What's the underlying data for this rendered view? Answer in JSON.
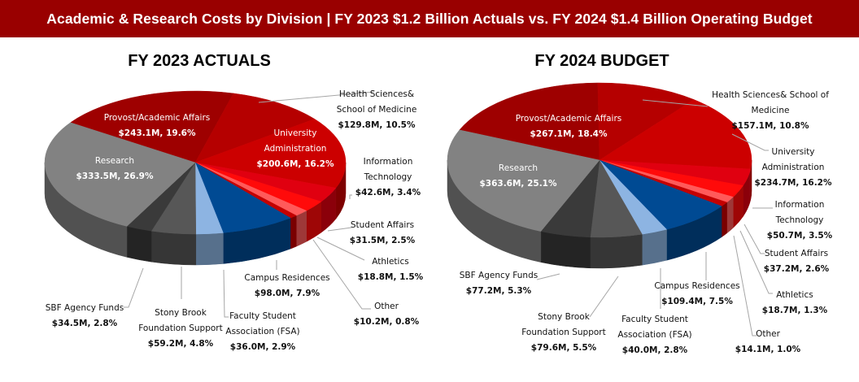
{
  "header": {
    "title": "Academic  & Research Costs by Division  | FY 2023 $1.2 Billion  Actuals  vs. FY 2024 $1.4 Billion  Operating Budget"
  },
  "colors": {
    "banner": "#990000",
    "Provost/Academic Affairs": "#9e0000",
    "Health Sciences& School of Medicine": "#b50000",
    "University Administration": "#cc0000",
    "Information Technology": "#e00010",
    "Student Affairs": "#ff0a0a",
    "Athletics": "#ff5a5a",
    "Other": "#c40000",
    "Campus Residences": "#004a93",
    "Faculty Student Association (FSA)": "#8db4e2",
    "Stony Brook Foundation Support": "#575757",
    "SBF Agency Funds": "#3a3a3a",
    "Research": "#828282"
  },
  "chart_data": [
    {
      "type": "pie",
      "title": "FY 2023 ACTUALS",
      "categories": [
        "Provost/Academic Affairs",
        "Health Sciences& School of Medicine",
        "University Administration",
        "Information Technology",
        "Student Affairs",
        "Athletics",
        "Other",
        "Campus Residences",
        "Faculty Student Association (FSA)",
        "Stony Brook Foundation Support",
        "SBF Agency Funds",
        "Research"
      ],
      "values_millions": [
        243.1,
        129.8,
        200.6,
        42.6,
        31.5,
        18.8,
        10.2,
        98.0,
        36.0,
        59.2,
        34.5,
        333.5
      ],
      "percents": [
        19.6,
        10.5,
        16.2,
        3.4,
        2.5,
        1.5,
        0.8,
        7.9,
        2.9,
        4.8,
        2.8,
        26.9
      ],
      "value_labels": [
        "$243.1M, 19.6%",
        "$129.8M, 10.5%",
        "$200.6M, 16.2%",
        "$42.6M, 3.4%",
        "$31.5M, 2.5%",
        "$18.8M, 1.5%",
        "$10.2M, 0.8%",
        "$98.0M, 7.9%",
        "$36.0M, 2.9%",
        "$59.2M, 4.8%",
        "$34.5M, 2.8%",
        "$333.5M, 26.9%"
      ],
      "total": "$1.2 Billion"
    },
    {
      "type": "pie",
      "title": "FY 2024 BUDGET",
      "categories": [
        "Provost/Academic Affairs",
        "Health Sciences& School of Medicine",
        "University Administration",
        "Information Technology",
        "Student Affairs",
        "Athletics",
        "Other",
        "Campus Residences",
        "Faculty Student Association (FSA)",
        "Stony Brook Foundation Support",
        "SBF Agency Funds",
        "Research"
      ],
      "values_millions": [
        267.1,
        157.1,
        234.7,
        50.7,
        37.2,
        18.7,
        14.1,
        109.4,
        40.0,
        79.6,
        77.2,
        363.6
      ],
      "percents": [
        18.4,
        10.8,
        16.2,
        3.5,
        2.6,
        1.3,
        1.0,
        7.5,
        2.8,
        5.5,
        5.3,
        25.1
      ],
      "value_labels": [
        "$267.1M, 18.4%",
        "$157.1M, 10.8%",
        "$234.7M, 16.2%",
        "$50.7M, 3.5%",
        "$37.2M, 2.6%",
        "$18.7M, 1.3%",
        "$14.1M, 1.0%",
        "$109.4M, 7.5%",
        "$40.0M, 2.8%",
        "$79.6M, 5.5%",
        "$77.2M, 5.3%",
        "$363.6M, 25.1%"
      ],
      "total": "$1.4 Billion"
    }
  ]
}
